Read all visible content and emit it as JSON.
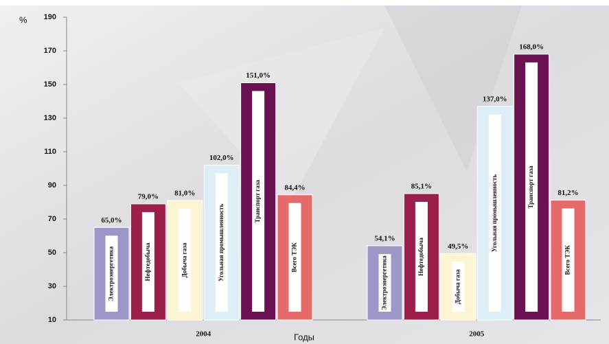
{
  "chart_data": {
    "type": "bar",
    "y_label": "%",
    "x_label": "Годы",
    "categories": [
      "2004",
      "2005"
    ],
    "series": [
      {
        "name": "Электроэнергетика",
        "color": "#9d96c9",
        "values": [
          65.0,
          54.1
        ],
        "value_labels": [
          "65,0%",
          "54,1%"
        ]
      },
      {
        "name": "Нефтедобыча",
        "color": "#9c1e4c",
        "values": [
          79.0,
          85.1
        ],
        "value_labels": [
          "79,0%",
          "85,1%"
        ]
      },
      {
        "name": "Добыча газа",
        "color": "#fcf5d2",
        "values": [
          81.0,
          49.5
        ],
        "value_labels": [
          "81,0%",
          "49,5%"
        ]
      },
      {
        "name": "Угольная промышленность",
        "color": "#ddeef7",
        "values": [
          102.0,
          137.0
        ],
        "value_labels": [
          "102,0%",
          "137,0%"
        ]
      },
      {
        "name": "Транспорт газа",
        "color": "#6b1050",
        "values": [
          151.0,
          168.0
        ],
        "value_labels": [
          "151,0%",
          "168,0%"
        ]
      },
      {
        "name": "Всего ТЭК",
        "color": "#e56b6b",
        "values": [
          84.4,
          81.2
        ],
        "value_labels": [
          "84,4%",
          "81,2%"
        ]
      }
    ],
    "ylim": [
      10,
      190
    ],
    "yticks": [
      10,
      30,
      50,
      70,
      90,
      110,
      130,
      150,
      170,
      190
    ]
  }
}
